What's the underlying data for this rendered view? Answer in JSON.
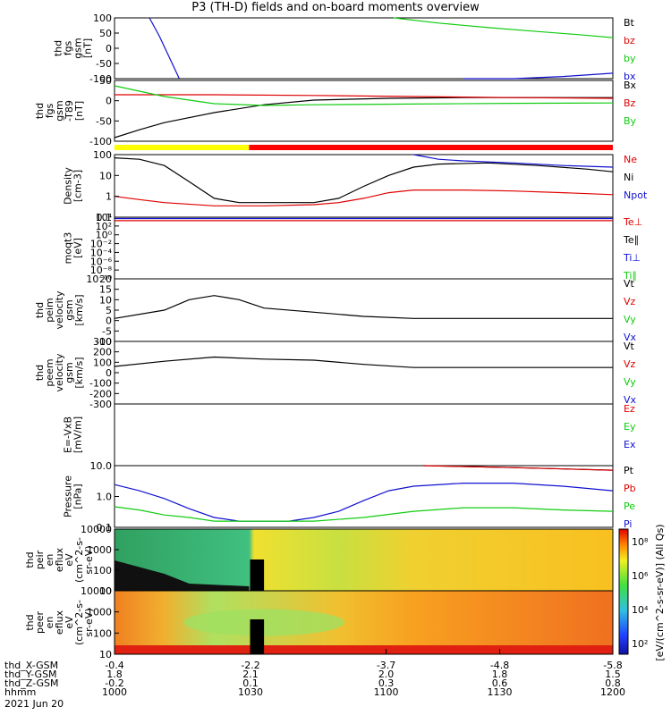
{
  "title": "P3 (TH-D) fields and on-board moments overview",
  "colors": {
    "black": "#000000",
    "red": "#e00000",
    "green": "#10cc10",
    "blue": "#1010d0",
    "mode_yellow": "#ffff00",
    "mode_red": "#ff0000"
  },
  "chart_data": {
    "type": "line",
    "time_axis": {
      "start": "1000",
      "end": "1200",
      "unit": "hhmm",
      "date": "2021 Jun 20"
    },
    "panels": [
      {
        "id": "fgs_gsm",
        "ylabel": [
          "thd",
          "fgs",
          "gsm",
          "[nT]"
        ],
        "ylim": [
          -100,
          100
        ],
        "yticks": [
          "100",
          "50",
          "0",
          "-50",
          "-100"
        ],
        "legend": [
          {
            "text": "Bt",
            "color": "black"
          },
          {
            "text": "bz",
            "color": "red"
          },
          {
            "text": "by",
            "color": "green"
          },
          {
            "text": "bx",
            "color": "blue"
          }
        ],
        "series": [
          {
            "name": "bx",
            "color": "blue",
            "t": [
              0.07,
              0.09,
              0.11,
              0.13
            ],
            "y": [
              100,
              40,
              -30,
              -100
            ]
          },
          {
            "name": "by",
            "color": "green",
            "t": [
              0.56,
              0.65,
              0.75,
              0.85,
              0.93,
              1.0
            ],
            "y": [
              100,
              83,
              68,
              55,
              45,
              35
            ]
          },
          {
            "name": "bx-late",
            "color": "blue",
            "t": [
              0.7,
              0.8,
              0.9,
              1.0
            ],
            "y": [
              -100,
              -100,
              -93,
              -82
            ]
          }
        ]
      },
      {
        "id": "fgs_gsm_t89",
        "ylabel": [
          "thd",
          "fgs",
          "gsm",
          "-T89",
          "[nT]"
        ],
        "ylim": [
          -110,
          60
        ],
        "yticks": [
          "50",
          "0",
          "-50",
          "-100"
        ],
        "legend": [
          {
            "text": "Bx",
            "color": "black"
          },
          {
            "text": "Bz",
            "color": "red"
          },
          {
            "text": "By",
            "color": "green"
          }
        ],
        "series": [
          {
            "name": "Bx",
            "color": "black",
            "t": [
              0,
              0.05,
              0.1,
              0.2,
              0.3,
              0.4,
              0.55,
              0.7,
              0.85,
              1.0
            ],
            "y": [
              -100,
              -78,
              -58,
              -30,
              -8,
              5,
              10,
              12,
              12,
              12
            ]
          },
          {
            "name": "Bz",
            "color": "red",
            "t": [
              0,
              0.2,
              0.4,
              0.6,
              0.8,
              1.0
            ],
            "y": [
              20,
              20,
              18,
              15,
              12,
              10
            ]
          },
          {
            "name": "By",
            "color": "green",
            "t": [
              0,
              0.05,
              0.1,
              0.2,
              0.3,
              0.4,
              0.6,
              0.8,
              1.0
            ],
            "y": [
              45,
              30,
              15,
              -5,
              -10,
              -8,
              -6,
              -4,
              -3
            ]
          }
        ]
      },
      {
        "id": "mode_bar",
        "segments": [
          {
            "from": 0,
            "to": 0.27,
            "color": "mode_yellow"
          },
          {
            "from": 0.27,
            "to": 1.0,
            "color": "mode_red"
          }
        ]
      },
      {
        "id": "density",
        "ylabel": [
          "Density",
          "[cm-3]"
        ],
        "ylim_log": [
          0.1,
          100
        ],
        "yticks": [
          "100",
          "10",
          "1",
          "0.1"
        ],
        "legend": [
          {
            "text": "Ne",
            "color": "red"
          },
          {
            "text": "Ni",
            "color": "black"
          },
          {
            "text": "Npot",
            "color": "blue"
          }
        ],
        "series": [
          {
            "name": "Ni",
            "color": "black",
            "t": [
              0,
              0.05,
              0.1,
              0.15,
              0.2,
              0.25,
              0.3,
              0.35,
              0.4,
              0.45,
              0.5,
              0.55,
              0.6,
              0.65,
              0.75,
              0.85,
              0.95,
              1.0
            ],
            "y": [
              70,
              60,
              30,
              5,
              0.8,
              0.5,
              0.5,
              0.5,
              0.5,
              0.8,
              3,
              10,
              25,
              35,
              40,
              30,
              20,
              15
            ]
          },
          {
            "name": "Ne",
            "color": "red",
            "t": [
              0,
              0.05,
              0.1,
              0.2,
              0.3,
              0.4,
              0.45,
              0.5,
              0.55,
              0.6,
              0.7,
              0.8,
              0.9,
              1.0
            ],
            "y": [
              1,
              0.7,
              0.5,
              0.35,
              0.35,
              0.4,
              0.5,
              0.8,
              1.5,
              2,
              2,
              1.8,
              1.5,
              1.2
            ]
          },
          {
            "name": "Npot",
            "color": "blue",
            "t": [
              0.6,
              0.65,
              0.7,
              0.8,
              0.9,
              1.0
            ],
            "y": [
              100,
              60,
              50,
              40,
              30,
              25
            ]
          }
        ]
      },
      {
        "id": "moms_t3",
        "ylabel": [
          "moqt3",
          "[eV]"
        ],
        "ylim_log_exp": [
          -10,
          4
        ],
        "yticks": [
          "10⁴",
          "10²",
          "10⁰",
          "10⁻²",
          "10⁻⁴",
          "10⁻⁶",
          "10⁻⁸",
          "10⁻¹⁰"
        ],
        "legend": [
          {
            "text": "Te⊥",
            "color": "red"
          },
          {
            "text": "Te∥",
            "color": "black"
          },
          {
            "text": "Ti⊥",
            "color": "blue"
          },
          {
            "text": "Ti∥",
            "color": "green"
          }
        ],
        "series": [
          {
            "name": "Ti",
            "color": "blue",
            "t": [
              0,
              1
            ],
            "y": [
              3.7,
              3.7
            ]
          },
          {
            "name": "Te",
            "color": "red",
            "t": [
              0,
              1
            ],
            "y": [
              3.2,
              3.2
            ]
          }
        ]
      },
      {
        "id": "peim_velocity",
        "ylabel": [
          "thd",
          "peim",
          "velocity",
          "gsm",
          "[km/s]"
        ],
        "ylim": [
          -10,
          20
        ],
        "yticks": [
          "20",
          "15",
          "10",
          "5",
          "0",
          "-5",
          "-10"
        ],
        "legend": [
          {
            "text": "Vt",
            "color": "black"
          },
          {
            "text": "Vz",
            "color": "red"
          },
          {
            "text": "Vy",
            "color": "green"
          },
          {
            "text": "Vx",
            "color": "blue"
          }
        ],
        "series": [
          {
            "name": "Vt",
            "color": "black",
            "t": [
              0,
              0.1,
              0.15,
              0.2,
              0.25,
              0.3,
              0.4,
              0.5,
              0.6,
              1.0
            ],
            "y": [
              1,
              5,
              10,
              12,
              10,
              6,
              4,
              2,
              1,
              1
            ]
          }
        ]
      },
      {
        "id": "peem_velocity",
        "ylabel": [
          "thd",
          "peem",
          "velocity",
          "gsm",
          "[km/s]"
        ],
        "ylim": [
          -300,
          300
        ],
        "yticks": [
          "300",
          "200",
          "100",
          "0",
          "-100",
          "-200",
          "-300"
        ],
        "legend": [
          {
            "text": "Vt",
            "color": "black"
          },
          {
            "text": "Vz",
            "color": "red"
          },
          {
            "text": "Vy",
            "color": "green"
          },
          {
            "text": "Vx",
            "color": "blue"
          }
        ],
        "series": [
          {
            "name": "Vt",
            "color": "black",
            "t": [
              0,
              0.1,
              0.2,
              0.3,
              0.4,
              0.5,
              0.6,
              1.0
            ],
            "y": [
              60,
              110,
              150,
              130,
              120,
              80,
              50,
              50
            ]
          }
        ]
      },
      {
        "id": "e_field",
        "ylabel": [
          "E=-VxB",
          "[mV/m]"
        ],
        "ylim": [
          -1,
          1
        ],
        "yticks": [],
        "legend": [
          {
            "text": "Ez",
            "color": "red"
          },
          {
            "text": "Ey",
            "color": "green"
          },
          {
            "text": "Ex",
            "color": "blue"
          }
        ],
        "series": []
      },
      {
        "id": "pressure",
        "ylabel": [
          "Pressure",
          "[nPa]"
        ],
        "ylim_log": [
          0.01,
          10
        ],
        "yticks": [
          "10.0",
          "1.0",
          "0.1"
        ],
        "legend": [
          {
            "text": "Pt",
            "color": "black"
          },
          {
            "text": "Pb",
            "color": "red"
          },
          {
            "text": "Pe",
            "color": "green"
          },
          {
            "text": "Pi",
            "color": "blue"
          }
        ],
        "series": [
          {
            "name": "Pi",
            "color": "blue",
            "t": [
              0,
              0.05,
              0.1,
              0.15,
              0.2,
              0.25,
              0.3,
              0.35,
              0.4,
              0.45,
              0.5,
              0.55,
              0.6,
              0.7,
              0.8,
              0.9,
              1.0
            ],
            "y": [
              1.2,
              0.6,
              0.25,
              0.08,
              0.03,
              0.02,
              0.02,
              0.02,
              0.03,
              0.06,
              0.2,
              0.6,
              1.0,
              1.4,
              1.4,
              1.0,
              0.6
            ]
          },
          {
            "name": "Pe",
            "color": "green",
            "t": [
              0,
              0.05,
              0.1,
              0.15,
              0.2,
              0.3,
              0.4,
              0.5,
              0.6,
              0.7,
              0.8,
              0.9,
              1.0
            ],
            "y": [
              0.1,
              0.07,
              0.04,
              0.03,
              0.02,
              0.02,
              0.02,
              0.03,
              0.06,
              0.09,
              0.09,
              0.07,
              0.06
            ]
          },
          {
            "name": "Pt",
            "color": "black",
            "t": [
              0.62,
              0.8,
              1.0
            ],
            "y": [
              10,
              8,
              6
            ]
          },
          {
            "name": "Pb",
            "color": "red",
            "t": [
              0.62,
              0.8,
              1.0
            ],
            "y": [
              10,
              8,
              6
            ]
          }
        ]
      },
      {
        "id": "peir_spec",
        "ylabel": [
          "thd",
          "peir",
          "en",
          "eflux",
          "eV",
          "(cm^2-s-",
          "sr-eV)"
        ],
        "ylim_log": [
          10,
          10000
        ],
        "yticks": [
          "10000",
          "1000",
          "100",
          "10"
        ]
      },
      {
        "id": "peer_spec",
        "ylabel": [
          "thd",
          "peer",
          "en",
          "eflux",
          "eV",
          "(cm^2-s-",
          "sr-eV)"
        ],
        "ylim_log": [
          10,
          10000
        ],
        "yticks": [
          "10000",
          "1000",
          "100",
          "10"
        ]
      }
    ],
    "colorbar": {
      "ticks": [
        "10⁸",
        "10⁶",
        "10⁴",
        "10²"
      ],
      "label": "[eV/(cm^2-s-sr-eV)] (All Qs)"
    }
  },
  "ephemeris": {
    "rows": [
      {
        "label": "thd_X-GSM",
        "values": [
          "-0.4",
          "-2.2",
          "-3.7",
          "-4.8",
          "-5.8"
        ]
      },
      {
        "label": "thd_Y-GSM",
        "values": [
          "1.8",
          "2.1",
          "2.0",
          "1.8",
          "1.5"
        ]
      },
      {
        "label": "thd_Z-GSM",
        "values": [
          "-0.2",
          "0.1",
          "0.3",
          "0.6",
          "0.8"
        ]
      },
      {
        "label": "hhmm",
        "values": [
          "1000",
          "1030",
          "1100",
          "1130",
          "1200"
        ]
      }
    ],
    "date": "2021 Jun 20"
  }
}
